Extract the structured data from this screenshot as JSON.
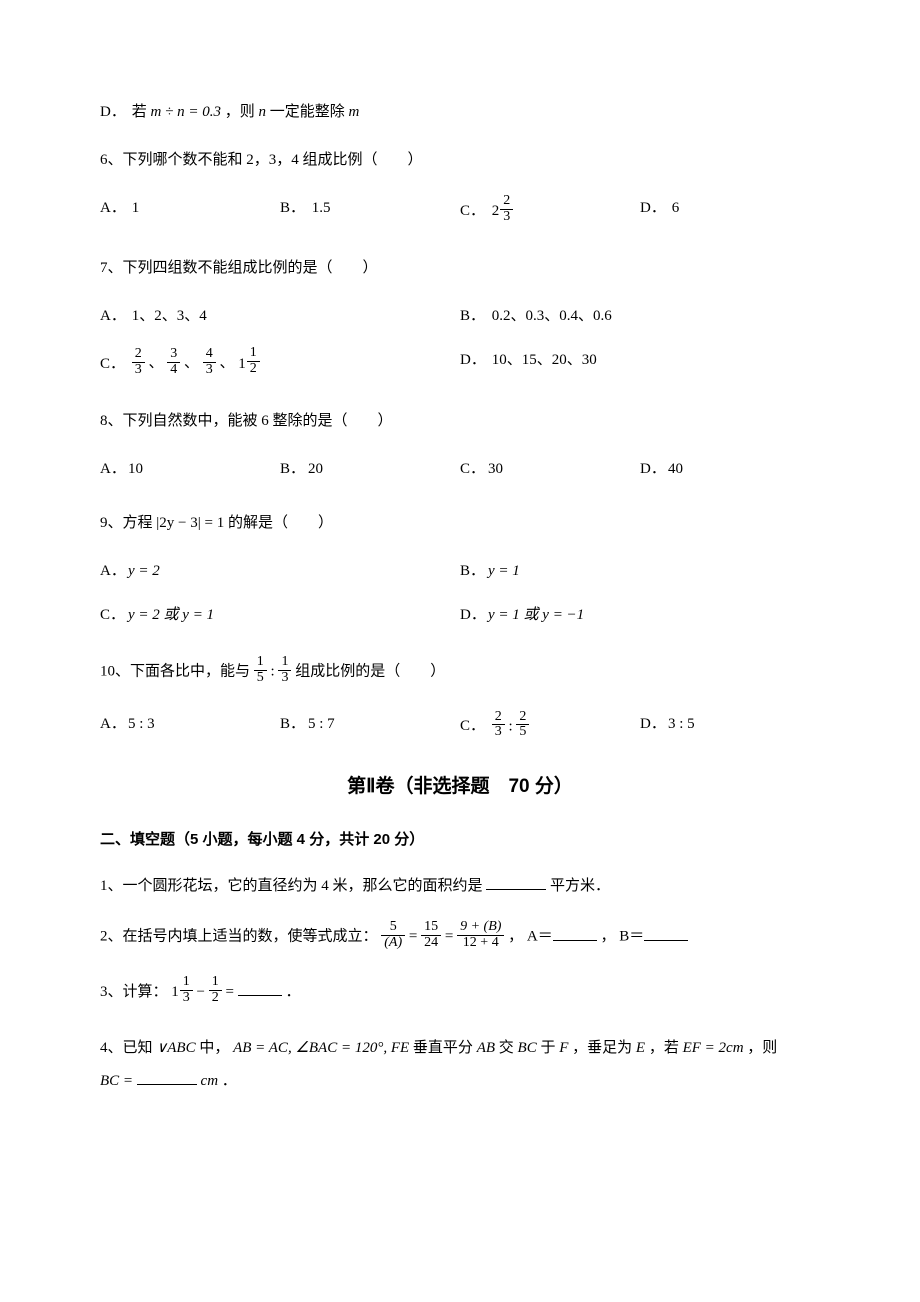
{
  "q5d": {
    "label": "D．",
    "prefix": "若 ",
    "expr": "m ÷ n = 0.3",
    "mid": "，则 ",
    "n": "n",
    "tail1": " 一定能整除 ",
    "m": "m"
  },
  "q6": {
    "stem": "6、下列哪个数不能和 2，3，4 组成比例（　　）",
    "a": {
      "l": "A．",
      "v": "1"
    },
    "b": {
      "l": "B．",
      "v": "1.5"
    },
    "c": {
      "l": "C．",
      "whole": "2",
      "num": "2",
      "den": "3"
    },
    "d": {
      "l": "D．",
      "v": "6"
    }
  },
  "q7": {
    "stem": "7、下列四组数不能组成比例的是（　　）",
    "a": {
      "l": "A．",
      "v": "1、2、3、4"
    },
    "b": {
      "l": "B．",
      "v": "0.2、0.3、0.4、0.6"
    },
    "c": {
      "l": "C．",
      "f1n": "2",
      "f1d": "3",
      "f2n": "3",
      "f2d": "4",
      "f3n": "4",
      "f3d": "3",
      "mw": "1",
      "mn": "1",
      "md": "2"
    },
    "d": {
      "l": "D．",
      "v": "10、15、20、30"
    }
  },
  "q8": {
    "stem": "8、下列自然数中，能被 6 整除的是（　　）",
    "a": {
      "l": "A．",
      "v": "10"
    },
    "b": {
      "l": "B．",
      "v": "20"
    },
    "c": {
      "l": "C．",
      "v": "30"
    },
    "d": {
      "l": "D．",
      "v": "40"
    }
  },
  "q9": {
    "stem_pre": "9、方程",
    "stem_expr": "|2y − 3| = 1",
    "stem_post": "的解是（　　）",
    "a": {
      "l": "A．",
      "v": "y = 2"
    },
    "b": {
      "l": "B．",
      "v": "y = 1"
    },
    "c": {
      "l": "C．",
      "v": "y = 2 或 y = 1"
    },
    "d": {
      "l": "D．",
      "v": "y = 1 或 y = −1"
    }
  },
  "q10": {
    "stem_pre": "10、下面各比中，能与",
    "r1n": "1",
    "r1d": "5",
    "r2n": "1",
    "r2d": "3",
    "stem_post": "组成比例的是（　　）",
    "a": {
      "l": "A．",
      "v": "5 : 3"
    },
    "b": {
      "l": "B．",
      "v": "5 : 7"
    },
    "c": {
      "l": "C．",
      "f1n": "2",
      "f1d": "3",
      "f2n": "2",
      "f2d": "5"
    },
    "d": {
      "l": "D．",
      "v": "3 : 5"
    }
  },
  "section2_title": "第Ⅱ卷（非选择题　70 分）",
  "fill_head": "二、填空题（5 小题，每小题 4 分，共计 20 分）",
  "f1": {
    "pre": "1、一个圆形花坛，它的直径约为 4 米，那么它的面积约是",
    "post": "平方米．"
  },
  "f2": {
    "pre": "2、在括号内填上适当的数，使等式成立：",
    "t1n": "5",
    "t1d": "(A)",
    "t2n": "15",
    "t2d": "24",
    "t3n": "9 + (B)",
    "t3d": "12 + 4",
    "mid1": "， A＝",
    "mid2": "， B＝"
  },
  "f3": {
    "pre": "3、计算：",
    "mw": "1",
    "mn": "1",
    "md": "3",
    "sn": "1",
    "sd": "2",
    "post": "．"
  },
  "f4": {
    "pre": "4、已知",
    "tri": "∨ABC",
    "mid1": " 中，",
    "expr1": "AB = AC, ∠BAC = 120°, FE",
    "mid2": " 垂直平分 ",
    "ab": "AB",
    "mid3": " 交 ",
    "bc": "BC",
    "mid4": " 于 ",
    "f": "F",
    "mid5": "，垂足为 ",
    "e": "E",
    "mid6": "，若 ",
    "expr2": "EF = 2cm",
    "mid7": " ，则",
    "bc2": "BC = ",
    "unit": "cm",
    "tail": " ．"
  }
}
